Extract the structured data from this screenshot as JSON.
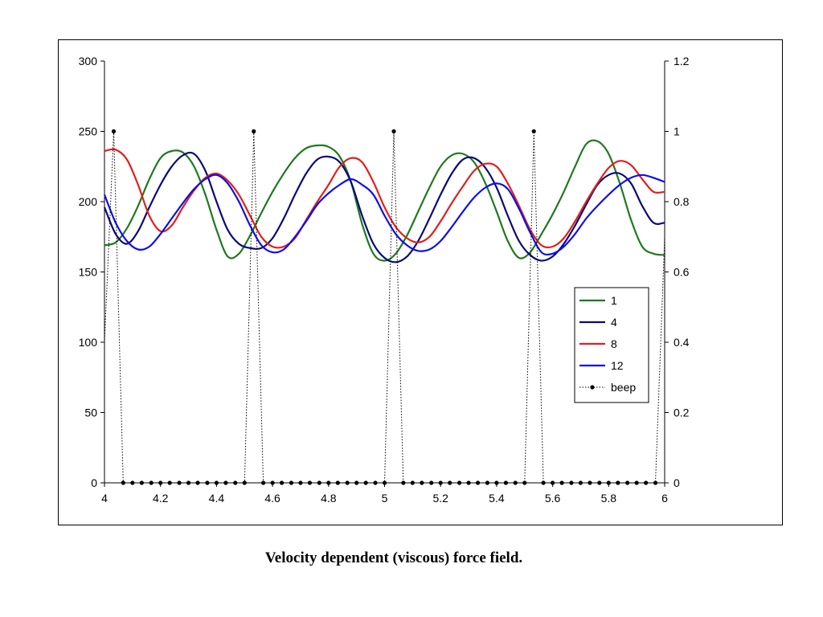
{
  "caption": "Velocity dependent (viscous) force field.",
  "chart_data": {
    "type": "line",
    "title": "",
    "xlabel": "",
    "ylabel": "",
    "xlim": [
      4,
      6
    ],
    "ylim_left": [
      0,
      300
    ],
    "ylim_right": [
      0,
      1.2
    ],
    "x_ticks": [
      "4",
      "4.2",
      "4.4",
      "4.6",
      "4.8",
      "5",
      "5.2",
      "5.4",
      "5.6",
      "5.8",
      "6"
    ],
    "y_ticks_left": [
      "0",
      "50",
      "100",
      "150",
      "200",
      "250",
      "300"
    ],
    "y_ticks_right": [
      "0",
      "0.2",
      "0.4",
      "0.6",
      "0.8",
      "1",
      "1.2"
    ],
    "grid": false,
    "legend_position": "right",
    "series": [
      {
        "name": "1",
        "color": "#1f7a1f",
        "axis": "left",
        "x": [
          4.0,
          4.04,
          4.08,
          4.12,
          4.16,
          4.2,
          4.24,
          4.28,
          4.32,
          4.36,
          4.4,
          4.44,
          4.48,
          4.52,
          4.56,
          4.6,
          4.64,
          4.68,
          4.72,
          4.76,
          4.8,
          4.84,
          4.88,
          4.92,
          4.96,
          5.0,
          5.04,
          5.08,
          5.12,
          5.16,
          5.2,
          5.24,
          5.28,
          5.32,
          5.36,
          5.4,
          5.44,
          5.48,
          5.52,
          5.56,
          5.6,
          5.64,
          5.68,
          5.72,
          5.76,
          5.8,
          5.84,
          5.88,
          5.92,
          5.96,
          6.0
        ],
        "values": [
          169,
          171,
          181,
          197,
          216,
          231,
          236,
          235,
          225,
          205,
          180,
          161,
          163,
          176,
          192,
          207,
          220,
          231,
          238,
          240,
          239,
          232,
          214,
          184,
          163,
          158,
          163,
          176,
          193,
          210,
          225,
          233,
          234,
          228,
          213,
          193,
          172,
          160,
          164,
          177,
          191,
          207,
          225,
          241,
          243,
          234,
          213,
          187,
          168,
          163,
          162
        ]
      },
      {
        "name": "4",
        "color": "#0a0a78",
        "axis": "left",
        "x": [
          4.0,
          4.04,
          4.08,
          4.12,
          4.16,
          4.2,
          4.24,
          4.28,
          4.32,
          4.36,
          4.4,
          4.44,
          4.48,
          4.52,
          4.56,
          4.6,
          4.64,
          4.68,
          4.72,
          4.76,
          4.8,
          4.84,
          4.88,
          4.92,
          4.96,
          5.0,
          5.04,
          5.08,
          5.12,
          5.16,
          5.2,
          5.24,
          5.28,
          5.32,
          5.36,
          5.4,
          5.44,
          5.48,
          5.52,
          5.56,
          5.6,
          5.64,
          5.68,
          5.72,
          5.76,
          5.8,
          5.84,
          5.88,
          5.92,
          5.96,
          6.0
        ],
        "values": [
          196,
          177,
          170,
          179,
          196,
          212,
          225,
          233,
          234,
          222,
          200,
          180,
          170,
          167,
          167,
          174,
          188,
          205,
          220,
          230,
          232,
          228,
          214,
          190,
          170,
          160,
          157,
          161,
          172,
          188,
          205,
          220,
          230,
          231,
          224,
          210,
          190,
          172,
          162,
          158,
          161,
          170,
          183,
          198,
          212,
          219,
          220,
          213,
          197,
          185,
          185
        ]
      },
      {
        "name": "8",
        "color": "#e0201c",
        "axis": "left",
        "x": [
          4.0,
          4.04,
          4.08,
          4.12,
          4.16,
          4.2,
          4.24,
          4.28,
          4.32,
          4.36,
          4.4,
          4.44,
          4.48,
          4.52,
          4.56,
          4.6,
          4.64,
          4.68,
          4.72,
          4.76,
          4.8,
          4.84,
          4.88,
          4.92,
          4.96,
          5.0,
          5.04,
          5.08,
          5.12,
          5.16,
          5.2,
          5.24,
          5.28,
          5.32,
          5.36,
          5.4,
          5.44,
          5.48,
          5.52,
          5.56,
          5.6,
          5.64,
          5.68,
          5.72,
          5.76,
          5.8,
          5.84,
          5.88,
          5.92,
          5.96,
          6.0
        ],
        "values": [
          236,
          237,
          230,
          212,
          190,
          179,
          183,
          196,
          208,
          217,
          220,
          215,
          205,
          190,
          175,
          168,
          168,
          174,
          187,
          200,
          212,
          225,
          231,
          228,
          214,
          196,
          182,
          174,
          171,
          175,
          186,
          199,
          211,
          222,
          227,
          225,
          213,
          197,
          180,
          169,
          168,
          174,
          186,
          200,
          213,
          224,
          229,
          226,
          216,
          207,
          207
        ]
      },
      {
        "name": "12",
        "color": "#1010e6",
        "axis": "left",
        "x": [
          4.0,
          4.04,
          4.08,
          4.12,
          4.16,
          4.2,
          4.24,
          4.28,
          4.32,
          4.36,
          4.4,
          4.44,
          4.48,
          4.52,
          4.56,
          4.6,
          4.64,
          4.68,
          4.72,
          4.76,
          4.8,
          4.84,
          4.88,
          4.92,
          4.96,
          5.0,
          5.04,
          5.08,
          5.12,
          5.16,
          5.2,
          5.24,
          5.28,
          5.32,
          5.36,
          5.4,
          5.44,
          5.48,
          5.52,
          5.56,
          5.6,
          5.64,
          5.68,
          5.72,
          5.76,
          5.8,
          5.84,
          5.88,
          5.92,
          5.96,
          6.0
        ],
        "values": [
          205,
          185,
          172,
          166,
          168,
          177,
          188,
          199,
          209,
          216,
          219,
          213,
          200,
          183,
          169,
          164,
          166,
          175,
          186,
          198,
          206,
          212,
          216,
          212,
          205,
          190,
          177,
          169,
          165,
          166,
          172,
          182,
          193,
          203,
          210,
          213,
          209,
          195,
          178,
          164,
          163,
          168,
          177,
          188,
          197,
          205,
          212,
          217,
          219,
          217,
          214
        ]
      },
      {
        "name": "beep",
        "color": "#000000",
        "axis": "right",
        "style": "dotted-markers",
        "x": [
          4.0,
          4.033,
          4.067,
          4.1,
          4.133,
          4.167,
          4.2,
          4.233,
          4.267,
          4.3,
          4.333,
          4.367,
          4.4,
          4.433,
          4.467,
          4.5,
          4.533,
          4.567,
          4.6,
          4.633,
          4.667,
          4.7,
          4.733,
          4.767,
          4.8,
          4.833,
          4.867,
          4.9,
          4.933,
          4.967,
          5.0,
          5.033,
          5.067,
          5.1,
          5.133,
          5.167,
          5.2,
          5.233,
          5.267,
          5.3,
          5.333,
          5.367,
          5.4,
          5.433,
          5.467,
          5.5,
          5.533,
          5.567,
          5.6,
          5.633,
          5.667,
          5.7,
          5.733,
          5.767,
          5.8,
          5.833,
          5.867,
          5.9,
          5.933,
          5.967,
          6.0
        ],
        "values": [
          0.4,
          1,
          0,
          0,
          0,
          0,
          0,
          0,
          0,
          0,
          0,
          0,
          0,
          0,
          0,
          0,
          1,
          0,
          0,
          0,
          0,
          0,
          0,
          0,
          0,
          0,
          0,
          0,
          0,
          0,
          0,
          1,
          0,
          0,
          0,
          0,
          0,
          0,
          0,
          0,
          0,
          0,
          0,
          0,
          0,
          0,
          1,
          0,
          0,
          0,
          0,
          0,
          0,
          0,
          0,
          0,
          0,
          0,
          0,
          0,
          0.7
        ]
      }
    ]
  }
}
